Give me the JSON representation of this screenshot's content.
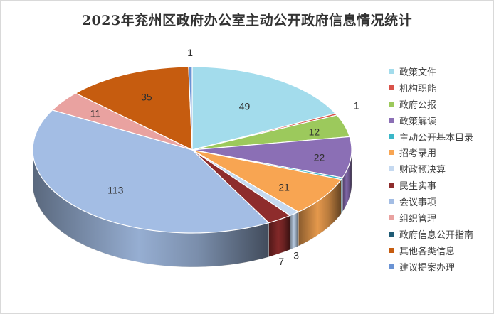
{
  "chart_data": {
    "type": "pie",
    "style": "3d",
    "title": "2023年兖州区政府办公室主动公开政府信息情况统计",
    "legend_position": "right",
    "slices": [
      {
        "name": "政策文件",
        "value": 49,
        "color": "#a3dcec"
      },
      {
        "name": "机构职能",
        "value": 1,
        "color": "#d9534a"
      },
      {
        "name": "政府公报",
        "value": 12,
        "color": "#9cc95c"
      },
      {
        "name": "政策解读",
        "value": 22,
        "color": "#8b6fb5"
      },
      {
        "name": "主动公开基本目录",
        "value": 1,
        "color": "#3ab7c8"
      },
      {
        "name": "招考录用",
        "value": 21,
        "color": "#f8a552"
      },
      {
        "name": "财政预决算",
        "value": 3,
        "color": "#c5d9f0"
      },
      {
        "name": "民生实事",
        "value": 7,
        "color": "#8e2c2c"
      },
      {
        "name": "会议事项",
        "value": 113,
        "color": "#a3bde4"
      },
      {
        "name": "组织管理",
        "value": 11,
        "color": "#e9a2a0"
      },
      {
        "name": "政府信息公开指南",
        "value": 0,
        "color": "#1f5b75"
      },
      {
        "name": "其他各类信息",
        "value": 35,
        "color": "#c65c0f"
      },
      {
        "name": "建议提案办理",
        "value": 1,
        "color": "#6a93d4"
      }
    ]
  }
}
